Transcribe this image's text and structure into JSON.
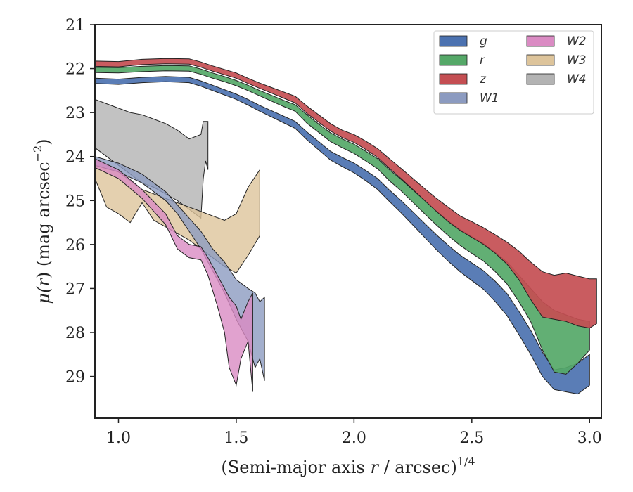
{
  "chart_data": {
    "type": "area",
    "xlabel": "(Semi-major axis r / arcsec)",
    "xlabel_parts": {
      "prefix": "(Semi-major axis ",
      "var": "r",
      "suffix": " / arcsec)",
      "exponent": "1/4"
    },
    "ylabel": "μ(r) (mag arcsec−2)",
    "ylabel_parts": {
      "mu": "μ(",
      "var": "r",
      "suffix": ") (mag arcsec",
      "exponent": "−2",
      "close": ")"
    },
    "xlim": [
      0.9,
      3.05
    ],
    "ylim": [
      29.95,
      21.0
    ],
    "y_inverted": true,
    "x_ticks": [
      1.0,
      1.5,
      2.0,
      2.5,
      3.0
    ],
    "x_tick_labels": [
      "1.0",
      "1.5",
      "2.0",
      "2.5",
      "3.0"
    ],
    "y_ticks": [
      21,
      22,
      23,
      24,
      25,
      26,
      27,
      28,
      29
    ],
    "y_tick_labels": [
      "21",
      "22",
      "23",
      "24",
      "25",
      "26",
      "27",
      "28",
      "29"
    ],
    "grid": false,
    "legend": {
      "placement": "top-right",
      "columns": 2
    },
    "series": [
      {
        "name": "z",
        "color": "#c44e52",
        "x": [
          0.9,
          1.0,
          1.1,
          1.2,
          1.3,
          1.35,
          1.4,
          1.45,
          1.5,
          1.55,
          1.6,
          1.65,
          1.7,
          1.75,
          1.8,
          1.85,
          1.9,
          1.95,
          2.0,
          2.05,
          2.1,
          2.15,
          2.2,
          2.25,
          2.3,
          2.35,
          2.4,
          2.45,
          2.5,
          2.55,
          2.6,
          2.65,
          2.7,
          2.75,
          2.8,
          2.85,
          2.9,
          2.95,
          3.0,
          3.03
        ],
        "y_upper": [
          21.83,
          21.84,
          21.79,
          21.77,
          21.78,
          21.85,
          21.94,
          22.02,
          22.1,
          22.22,
          22.33,
          22.43,
          22.53,
          22.63,
          22.85,
          23.05,
          23.25,
          23.4,
          23.5,
          23.65,
          23.82,
          24.05,
          24.27,
          24.5,
          24.73,
          24.95,
          25.15,
          25.35,
          25.48,
          25.62,
          25.78,
          25.95,
          26.15,
          26.4,
          26.62,
          26.7,
          26.65,
          26.72,
          26.78,
          26.78
        ],
        "y_lower": [
          21.95,
          21.96,
          21.91,
          21.89,
          21.9,
          21.97,
          22.06,
          22.14,
          22.22,
          22.34,
          22.45,
          22.56,
          22.67,
          22.78,
          23.02,
          23.22,
          23.42,
          23.57,
          23.68,
          23.84,
          24.02,
          24.27,
          24.5,
          24.75,
          25.0,
          25.25,
          25.48,
          25.68,
          25.84,
          26.0,
          26.2,
          26.45,
          26.8,
          27.25,
          27.65,
          27.7,
          27.75,
          27.85,
          27.9,
          27.8
        ]
      },
      {
        "name": "r",
        "color": "#55a868",
        "x": [
          0.9,
          1.0,
          1.1,
          1.2,
          1.3,
          1.35,
          1.4,
          1.45,
          1.5,
          1.55,
          1.6,
          1.65,
          1.7,
          1.75,
          1.8,
          1.85,
          1.9,
          1.95,
          2.0,
          2.05,
          2.1,
          2.15,
          2.2,
          2.25,
          2.3,
          2.35,
          2.4,
          2.45,
          2.5,
          2.55,
          2.6,
          2.65,
          2.7,
          2.75,
          2.8,
          2.85,
          2.9,
          2.95,
          3.0
        ],
        "y_upper": [
          21.97,
          21.98,
          21.95,
          21.93,
          21.94,
          22.01,
          22.1,
          22.18,
          22.27,
          22.38,
          22.5,
          22.61,
          22.72,
          22.82,
          23.05,
          23.26,
          23.46,
          23.6,
          23.72,
          23.88,
          24.05,
          24.3,
          24.52,
          24.76,
          25.0,
          25.24,
          25.46,
          25.66,
          25.82,
          25.98,
          26.18,
          26.4,
          26.7,
          27.0,
          27.3,
          27.5,
          27.6,
          27.7,
          27.75
        ],
        "y_lower": [
          22.09,
          22.1,
          22.07,
          22.05,
          22.06,
          22.13,
          22.22,
          22.3,
          22.39,
          22.5,
          22.62,
          22.74,
          22.86,
          22.97,
          23.24,
          23.45,
          23.66,
          23.8,
          23.93,
          24.1,
          24.28,
          24.55,
          24.78,
          25.04,
          25.3,
          25.56,
          25.8,
          26.02,
          26.2,
          26.38,
          26.62,
          26.9,
          27.3,
          27.75,
          28.4,
          28.9,
          28.95,
          28.7,
          28.4
        ]
      },
      {
        "name": "g",
        "color": "#4c72b0",
        "x": [
          0.9,
          1.0,
          1.1,
          1.2,
          1.3,
          1.35,
          1.4,
          1.45,
          1.5,
          1.55,
          1.6,
          1.65,
          1.7,
          1.75,
          1.8,
          1.85,
          1.9,
          1.95,
          2.0,
          2.05,
          2.1,
          2.15,
          2.2,
          2.25,
          2.3,
          2.35,
          2.4,
          2.45,
          2.5,
          2.55,
          2.6,
          2.65,
          2.7,
          2.75,
          2.8,
          2.85,
          2.9,
          2.95,
          3.0
        ],
        "y_upper": [
          22.22,
          22.24,
          22.2,
          22.18,
          22.2,
          22.28,
          22.38,
          22.48,
          22.58,
          22.7,
          22.84,
          22.96,
          23.08,
          23.2,
          23.44,
          23.66,
          23.88,
          24.02,
          24.15,
          24.32,
          24.5,
          24.76,
          25.0,
          25.26,
          25.52,
          25.78,
          26.02,
          26.24,
          26.42,
          26.6,
          26.84,
          27.12,
          27.52,
          27.95,
          28.45,
          28.85,
          28.8,
          28.7,
          28.5
        ],
        "y_lower": [
          22.34,
          22.36,
          22.32,
          22.3,
          22.32,
          22.4,
          22.5,
          22.6,
          22.7,
          22.83,
          22.97,
          23.1,
          23.23,
          23.36,
          23.62,
          23.85,
          24.08,
          24.23,
          24.37,
          24.55,
          24.75,
          25.02,
          25.28,
          25.56,
          25.84,
          26.12,
          26.38,
          26.62,
          26.82,
          27.02,
          27.3,
          27.62,
          28.05,
          28.5,
          29.0,
          29.3,
          29.35,
          29.4,
          29.2
        ]
      },
      {
        "name": "W1",
        "color": "#8c9bc0",
        "x": [
          0.9,
          1.0,
          1.1,
          1.2,
          1.25,
          1.3,
          1.35,
          1.4,
          1.45,
          1.5,
          1.55,
          1.58,
          1.6,
          1.62
        ],
        "y_upper": [
          24.0,
          24.15,
          24.4,
          24.8,
          25.1,
          25.4,
          25.7,
          26.1,
          26.4,
          26.8,
          27.0,
          27.1,
          27.3,
          27.2
        ],
        "y_lower": [
          24.2,
          24.35,
          24.6,
          25.0,
          25.3,
          25.7,
          26.1,
          26.6,
          27.1,
          27.7,
          28.2,
          28.8,
          28.6,
          29.1
        ]
      },
      {
        "name": "W2",
        "color": "#da8bc3",
        "x": [
          0.9,
          1.0,
          1.1,
          1.2,
          1.25,
          1.3,
          1.35,
          1.38,
          1.42,
          1.45,
          1.47,
          1.5,
          1.52,
          1.55,
          1.57
        ],
        "y_upper": [
          24.05,
          24.3,
          24.75,
          25.3,
          25.8,
          26.0,
          26.05,
          26.3,
          26.7,
          27.0,
          27.2,
          27.4,
          27.7,
          27.3,
          27.1
        ],
        "y_lower": [
          24.25,
          24.5,
          24.95,
          25.55,
          26.1,
          26.3,
          26.35,
          26.7,
          27.4,
          28.0,
          28.8,
          29.2,
          28.6,
          28.2,
          29.35
        ]
      },
      {
        "name": "W3",
        "color": "#ddc49b",
        "x": [
          0.9,
          0.95,
          1.0,
          1.05,
          1.1,
          1.15,
          1.2,
          1.25,
          1.3,
          1.35,
          1.4,
          1.45,
          1.5,
          1.55,
          1.6
        ],
        "y_upper": [
          24.05,
          24.2,
          24.35,
          24.55,
          24.75,
          24.85,
          24.95,
          25.05,
          25.15,
          25.25,
          25.35,
          25.45,
          25.3,
          24.7,
          24.3
        ],
        "y_lower": [
          24.5,
          25.15,
          25.3,
          25.5,
          25.05,
          25.45,
          25.6,
          25.75,
          25.9,
          26.1,
          26.3,
          26.5,
          26.65,
          26.25,
          25.8
        ]
      },
      {
        "name": "W4",
        "color": "#b3b3b3",
        "x": [
          0.9,
          0.95,
          1.0,
          1.05,
          1.1,
          1.15,
          1.2,
          1.25,
          1.3,
          1.35,
          1.36,
          1.37,
          1.38
        ],
        "y_upper": [
          22.7,
          22.8,
          22.9,
          23.0,
          23.05,
          23.15,
          23.25,
          23.4,
          23.6,
          23.5,
          23.2,
          23.2,
          23.2
        ],
        "y_lower": [
          23.8,
          24.0,
          24.2,
          24.4,
          24.6,
          24.7,
          24.85,
          25.0,
          25.2,
          25.4,
          24.5,
          24.1,
          24.3
        ]
      }
    ]
  }
}
